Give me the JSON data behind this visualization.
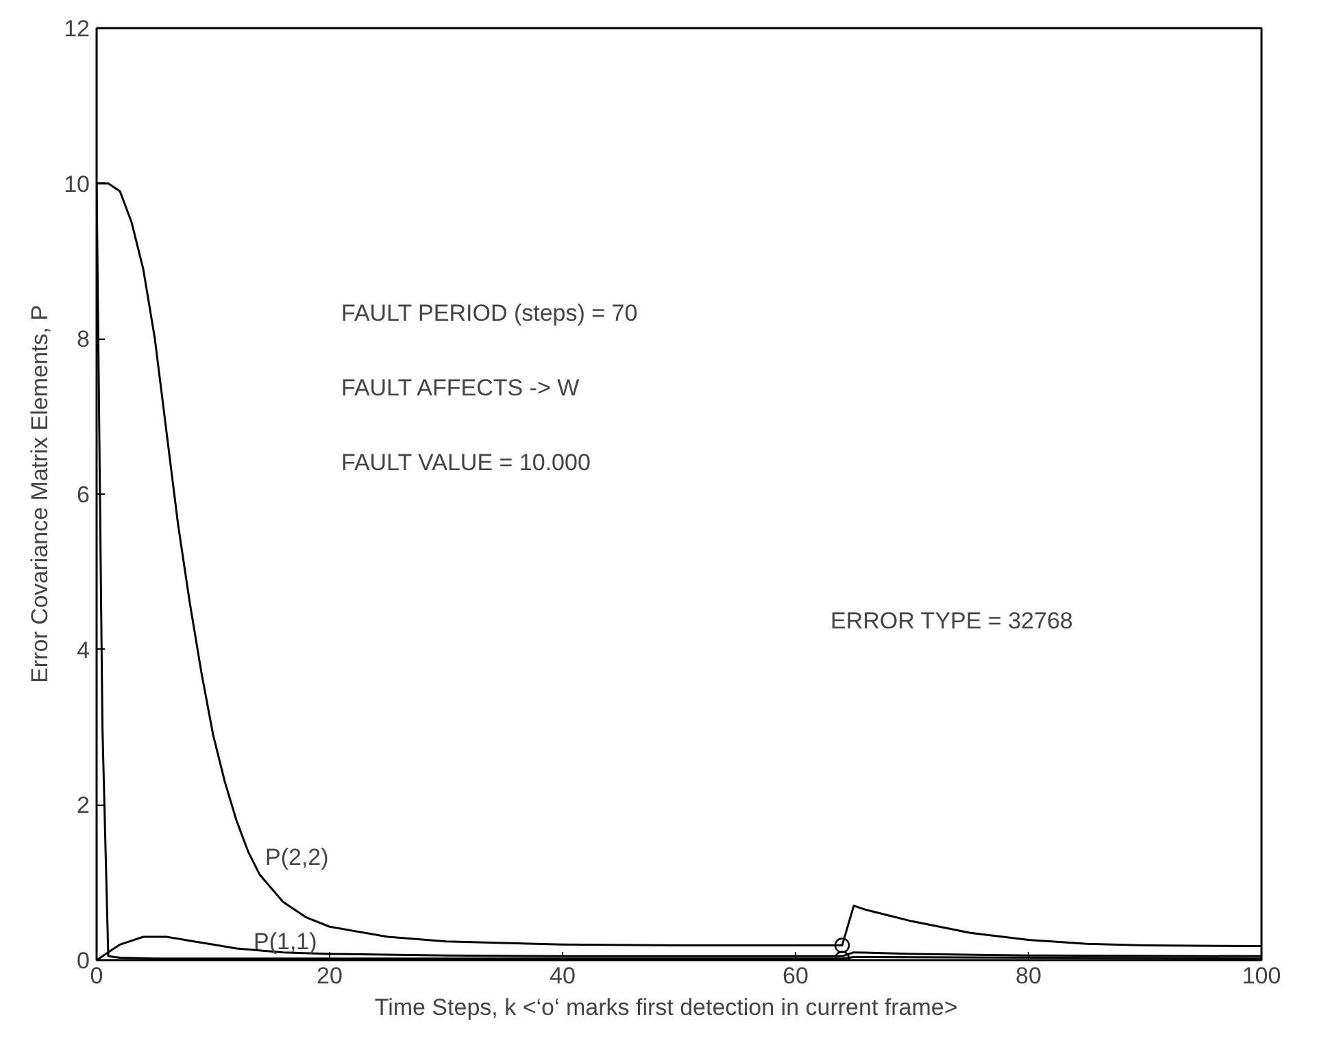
{
  "chart_data": {
    "type": "line",
    "xlabel": "Time Steps, k     <‘o‘ marks first detection in current frame>",
    "ylabel": "Error Covariance Matrix Elements, P",
    "xlim": [
      0,
      100
    ],
    "ylim": [
      0,
      12
    ],
    "xticks": [
      0,
      20,
      40,
      60,
      80,
      100
    ],
    "yticks": [
      0,
      2,
      4,
      6,
      8,
      10,
      12
    ],
    "grid": false,
    "marker": "none",
    "line_style": "solid",
    "series": [
      {
        "color": "#000000",
        "x": [
          0,
          1,
          2,
          3,
          4,
          5,
          6,
          7,
          8,
          9,
          10,
          11,
          12,
          13,
          14,
          16,
          18,
          20,
          25,
          30,
          40,
          50,
          64,
          65,
          66,
          70,
          75,
          80,
          85,
          90,
          100
        ],
        "values": [
          10,
          10,
          9.9,
          9.5,
          8.9,
          8.0,
          6.8,
          5.6,
          4.6,
          3.7,
          2.9,
          2.3,
          1.8,
          1.4,
          1.1,
          0.75,
          0.55,
          0.43,
          0.3,
          0.24,
          0.2,
          0.19,
          0.19,
          0.7,
          0.65,
          0.5,
          0.35,
          0.26,
          0.21,
          0.19,
          0.18
        ]
      },
      {
        "color": "#000000",
        "x": [
          0,
          2,
          4,
          5,
          6,
          8,
          10,
          12,
          16,
          20,
          30,
          40,
          64,
          65,
          70,
          80,
          100
        ],
        "values": [
          0,
          0.2,
          0.3,
          0.3,
          0.3,
          0.25,
          0.2,
          0.15,
          0.1,
          0.08,
          0.06,
          0.05,
          0.05,
          0.1,
          0.08,
          0.06,
          0.05
        ]
      },
      {
        "color": "#000000",
        "x": [
          0,
          0.5,
          1,
          2,
          5,
          20,
          64,
          65,
          100
        ],
        "values": [
          10,
          3,
          0.05,
          0.03,
          0.02,
          0.02,
          0.02,
          0.04,
          0.02
        ]
      },
      {
        "type": "scatter",
        "marker": "circle",
        "color": "#000000",
        "x": [
          64,
          64
        ],
        "values": [
          0.19,
          0.02
        ]
      }
    ],
    "annotations": [
      "FAULT PERIOD (steps) = 70",
      "FAULT AFFECTS -> W",
      "FAULT VALUE =   10.000",
      "ERROR TYPE = 32768",
      {
        "text": "P(2,2)",
        "x": 14,
        "y": 1.1
      },
      {
        "text": "P(1,1)",
        "x": 13,
        "y": 0.02
      }
    ]
  }
}
